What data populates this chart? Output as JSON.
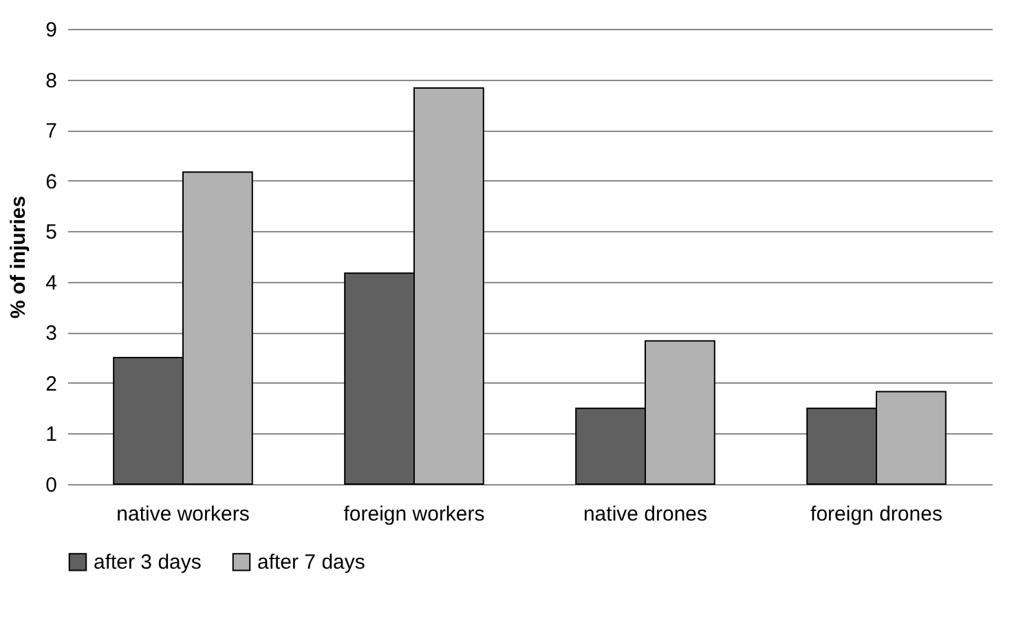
{
  "chart_data": {
    "type": "bar",
    "ylabel": "% of injuries",
    "categories": [
      "native workers",
      "foreign workers",
      "native drones",
      "foreign drones"
    ],
    "series": [
      {
        "name": "after 3 days",
        "color": "#606060",
        "values": [
          2.5,
          4.17,
          1.5,
          1.5
        ]
      },
      {
        "name": "after 7 days",
        "color": "#b2b2b2",
        "values": [
          6.17,
          7.83,
          2.83,
          1.83
        ]
      }
    ],
    "ylim": [
      0,
      9
    ],
    "yticks": [
      0,
      1,
      2,
      3,
      4,
      5,
      6,
      7,
      8,
      9
    ],
    "grid": "y",
    "legend": "bottom"
  }
}
